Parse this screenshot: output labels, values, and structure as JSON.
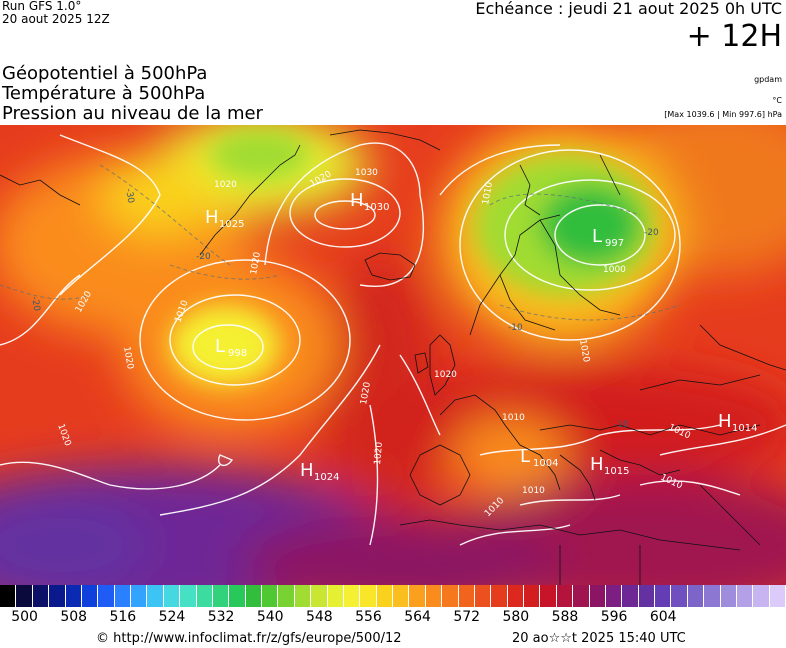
{
  "header": {
    "run": "Run GFS 1.0°",
    "run_date": "20 aout 2025 12Z",
    "echeance": "Echéance : jeudi 21 aout 2025 0h UTC",
    "horizon": "+ 12H"
  },
  "titles": [
    "Géopotentiel à 500hPa",
    "Température à 500hPa",
    "Pression au niveau de la mer"
  ],
  "units": {
    "geopotential": "gpdam",
    "temperature": "°C",
    "pressure": "[Max 1039.6 | Min 997.6] hPa"
  },
  "scale": {
    "ticks": [
      "500",
      "508",
      "516",
      "524",
      "532",
      "540",
      "548",
      "556",
      "564",
      "572",
      "580",
      "588",
      "596",
      "604"
    ],
    "colors": [
      "#000000",
      "#0a0a3c",
      "#0c1066",
      "#0a1a8c",
      "#0b2ab4",
      "#1040dc",
      "#1e5cf5",
      "#2a80ff",
      "#32a4ff",
      "#3cc4f5",
      "#46d8e0",
      "#46e0c4",
      "#3cdca0",
      "#32d27c",
      "#28c85a",
      "#32be3c",
      "#50c832",
      "#78d232",
      "#a0dc32",
      "#c8e632",
      "#e6f032",
      "#f5f032",
      "#fae628",
      "#fad21e",
      "#fabe1e",
      "#faa01e",
      "#fa8c1e",
      "#f5781e",
      "#f0641e",
      "#eb501e",
      "#e63c1e",
      "#dc281e",
      "#d21e1e",
      "#c81428",
      "#b4143c",
      "#a01450",
      "#8c1464",
      "#7d1e82",
      "#6e2896",
      "#6432a0",
      "#643cb4",
      "#7050be",
      "#7c64c8",
      "#8c78d2",
      "#a08cdc",
      "#b4a0e6",
      "#c8b4f0",
      "#dccafa"
    ]
  },
  "systems": [
    {
      "type": "H",
      "value": "1025"
    },
    {
      "type": "H",
      "value": "1030"
    },
    {
      "type": "L",
      "value": "998"
    },
    {
      "type": "L",
      "value": "997"
    },
    {
      "type": "H",
      "value": "1024"
    },
    {
      "type": "L",
      "value": "1004"
    },
    {
      "type": "H",
      "value": "1015"
    },
    {
      "type": "H",
      "value": "1014"
    }
  ],
  "isobar_labels": [
    "1030",
    "1020",
    "1020",
    "1020",
    "1010",
    "1020",
    "1020",
    "1020",
    "1010",
    "1000",
    "1020",
    "1020",
    "1010",
    "1010",
    "1010",
    "1010",
    "1010",
    "1020",
    "1020"
  ],
  "temp_labels": [
    "-30",
    "-20",
    "-20",
    "-10",
    "-20",
    "-10"
  ],
  "footer": {
    "credit": "© http://www.infoclimat.fr/z/gfs/europe/500/12",
    "generated": "20 ao☆☆t 2025 15:40 UTC"
  }
}
